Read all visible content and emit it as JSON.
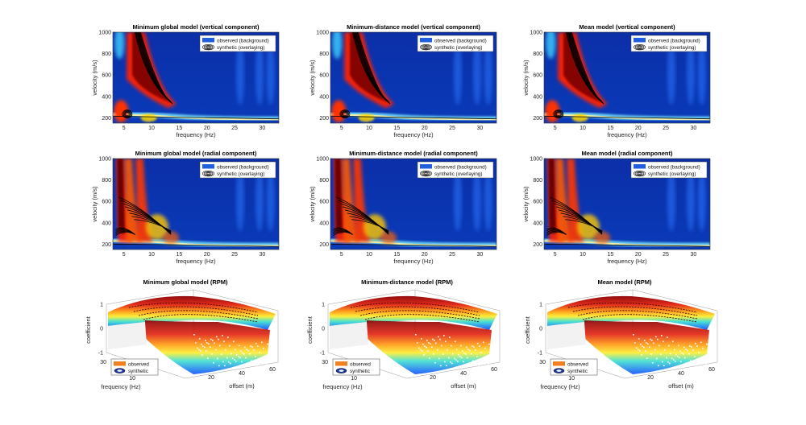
{
  "figure": {
    "panels_spectra": [
      {
        "title": "Minimum global model (vertical component)",
        "component": "vertical",
        "variant": 0
      },
      {
        "title": "Minimum-distance model (vertical component)",
        "component": "vertical",
        "variant": 1
      },
      {
        "title": "Mean model (vertical component)",
        "component": "vertical",
        "variant": 2
      },
      {
        "title": "Minimum global model (radial component)",
        "component": "radial",
        "variant": 0
      },
      {
        "title": "Minimum-distance model (radial component)",
        "component": "radial",
        "variant": 1
      },
      {
        "title": "Mean model (radial component)",
        "component": "radial",
        "variant": 2
      }
    ],
    "spectra_axes": {
      "xlabel": "frequency (Hz)",
      "ylabel": "velocity (m/s)",
      "xticks": [
        5,
        10,
        15,
        20,
        25,
        30
      ],
      "yticks": [
        200,
        400,
        600,
        800,
        1000
      ],
      "xlim": [
        3,
        33
      ],
      "ylim": [
        150,
        1000
      ]
    },
    "spectra_legend": {
      "observed": "observed (background)",
      "synthetic": "synthetic (overlaying)"
    },
    "panels_rpm": [
      {
        "title": "Minimum global model (RPM)"
      },
      {
        "title": "Minimum-distance model (RPM)"
      },
      {
        "title": "Mean model (RPM)"
      }
    ],
    "rpm_axes": {
      "zlabel": "coefficient",
      "xlabel": "frequency (Hz)",
      "ylabel": "offset (m)",
      "zticks": [
        1,
        0,
        -1
      ],
      "freq_ticks": [
        30,
        20,
        10
      ],
      "offset_ticks": [
        20,
        40,
        60
      ]
    },
    "rpm_legend": {
      "observed": "observed",
      "synthetic": "synthetic"
    },
    "colors": {
      "observed_spectra": "#1f5fe0",
      "observed_rpm": "#f08020",
      "background": "#0a2a9a"
    }
  },
  "chart_data": [
    {
      "type": "heatmap",
      "title": "Minimum global model (vertical component)",
      "xlabel": "frequency (Hz)",
      "ylabel": "velocity (m/s)",
      "xlim": [
        3,
        33
      ],
      "ylim": [
        150,
        1000
      ],
      "series": [
        {
          "name": "observed (background)",
          "peak_ridge": [
            [
              4,
              230
            ],
            [
              6,
              450
            ],
            [
              8,
              700
            ],
            [
              10,
              560
            ],
            [
              12,
              420
            ],
            [
              14,
              330
            ],
            [
              20,
              240
            ],
            [
              30,
              205
            ]
          ]
        },
        {
          "name": "synthetic (overlaying)",
          "contour_ridge": [
            [
              6,
              230
            ],
            [
              8,
              640
            ],
            [
              10,
              540
            ],
            [
              13,
              360
            ]
          ]
        }
      ]
    },
    {
      "type": "heatmap",
      "title": "Minimum-distance model (vertical component)",
      "xlabel": "frequency (Hz)",
      "ylabel": "velocity (m/s)",
      "xlim": [
        3,
        33
      ],
      "ylim": [
        150,
        1000
      ],
      "series": [
        {
          "name": "observed (background)",
          "peak_ridge": [
            [
              4,
              230
            ],
            [
              6,
              450
            ],
            [
              8,
              700
            ],
            [
              10,
              560
            ],
            [
              12,
              420
            ],
            [
              14,
              330
            ],
            [
              20,
              240
            ],
            [
              30,
              205
            ]
          ]
        },
        {
          "name": "synthetic (overlaying)",
          "contour_ridge": [
            [
              6,
              230
            ],
            [
              8,
              640
            ],
            [
              10,
              540
            ],
            [
              13,
              360
            ]
          ]
        }
      ]
    },
    {
      "type": "heatmap",
      "title": "Mean model (vertical component)",
      "xlabel": "frequency (Hz)",
      "ylabel": "velocity (m/s)",
      "xlim": [
        3,
        33
      ],
      "ylim": [
        150,
        1000
      ],
      "series": [
        {
          "name": "observed (background)",
          "peak_ridge": [
            [
              4,
              230
            ],
            [
              6,
              450
            ],
            [
              8,
              700
            ],
            [
              10,
              560
            ],
            [
              12,
              420
            ],
            [
              14,
              330
            ],
            [
              20,
              240
            ],
            [
              30,
              205
            ]
          ]
        },
        {
          "name": "synthetic (overlaying)",
          "contour_ridge": [
            [
              6,
              230
            ],
            [
              8,
              640
            ],
            [
              10,
              540
            ],
            [
              13,
              360
            ]
          ]
        }
      ]
    },
    {
      "type": "heatmap",
      "title": "Minimum global model (radial component)",
      "xlabel": "frequency (Hz)",
      "ylabel": "velocity (m/s)",
      "xlim": [
        3,
        33
      ],
      "ylim": [
        150,
        1000
      ],
      "series": [
        {
          "name": "observed (background)",
          "peak_ridge": [
            [
              4,
              900
            ],
            [
              5,
              700
            ],
            [
              7,
              500
            ],
            [
              9,
              370
            ],
            [
              12,
              290
            ],
            [
              20,
              210
            ],
            [
              30,
              180
            ]
          ]
        },
        {
          "name": "synthetic (overlaying)",
          "contour_ridge": [
            [
              5,
              320
            ],
            [
              8,
              560
            ],
            [
              10,
              420
            ],
            [
              13,
              290
            ]
          ]
        }
      ]
    },
    {
      "type": "heatmap",
      "title": "Minimum-distance model (radial component)",
      "xlabel": "frequency (Hz)",
      "ylabel": "velocity (m/s)",
      "xlim": [
        3,
        33
      ],
      "ylim": [
        150,
        1000
      ],
      "series": [
        {
          "name": "observed (background)",
          "peak_ridge": [
            [
              4,
              900
            ],
            [
              5,
              700
            ],
            [
              7,
              500
            ],
            [
              9,
              370
            ],
            [
              12,
              290
            ],
            [
              20,
              210
            ],
            [
              30,
              180
            ]
          ]
        },
        {
          "name": "synthetic (overlaying)",
          "contour_ridge": [
            [
              5,
              320
            ],
            [
              8,
              560
            ],
            [
              10,
              420
            ],
            [
              13,
              290
            ]
          ]
        }
      ]
    },
    {
      "type": "heatmap",
      "title": "Mean model (radial component)",
      "xlabel": "frequency (Hz)",
      "ylabel": "velocity (m/s)",
      "xlim": [
        3,
        33
      ],
      "ylim": [
        150,
        1000
      ],
      "series": [
        {
          "name": "observed (background)",
          "peak_ridge": [
            [
              4,
              900
            ],
            [
              5,
              700
            ],
            [
              7,
              500
            ],
            [
              9,
              370
            ],
            [
              12,
              290
            ],
            [
              20,
              210
            ],
            [
              30,
              180
            ]
          ]
        },
        {
          "name": "synthetic (overlaying)",
          "contour_ridge": [
            [
              5,
              320
            ],
            [
              8,
              560
            ],
            [
              10,
              420
            ],
            [
              13,
              290
            ]
          ]
        }
      ]
    },
    {
      "type": "area",
      "title": "Minimum global model (RPM)",
      "xlabel": "frequency (Hz)",
      "ylabel": "offset (m)",
      "zlabel": "coefficient",
      "zlim": [
        -1,
        1
      ],
      "series": [
        {
          "name": "observed"
        },
        {
          "name": "synthetic"
        }
      ]
    },
    {
      "type": "area",
      "title": "Minimum-distance model (RPM)",
      "xlabel": "frequency (Hz)",
      "ylabel": "offset (m)",
      "zlabel": "coefficient",
      "zlim": [
        -1,
        1
      ],
      "series": [
        {
          "name": "observed"
        },
        {
          "name": "synthetic"
        }
      ]
    },
    {
      "type": "area",
      "title": "Mean model (RPM)",
      "xlabel": "frequency (Hz)",
      "ylabel": "offset (m)",
      "zlabel": "coefficient",
      "zlim": [
        -1,
        1
      ],
      "series": [
        {
          "name": "observed"
        },
        {
          "name": "synthetic"
        }
      ]
    }
  ]
}
